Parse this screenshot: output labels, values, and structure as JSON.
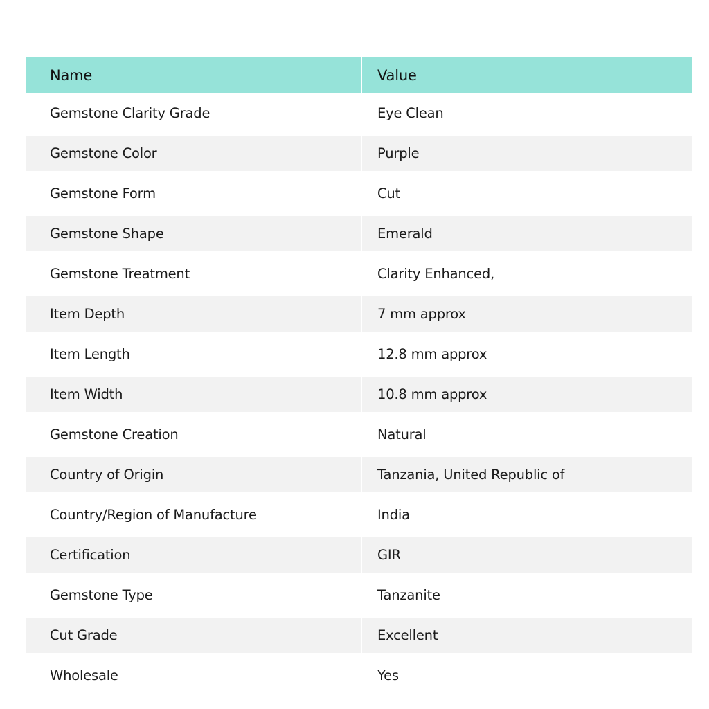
{
  "header": {
    "name": "Name",
    "value": "Value"
  },
  "colors": {
    "header_bg": "#96e3d9",
    "stripe_bg": "#f2f2f2"
  },
  "rows": [
    {
      "name": "Gemstone Clarity Grade",
      "value": "Eye Clean"
    },
    {
      "name": "Gemstone Color",
      "value": "Purple"
    },
    {
      "name": "Gemstone Form",
      "value": "Cut"
    },
    {
      "name": "Gemstone Shape",
      "value": "Emerald"
    },
    {
      "name": "Gemstone Treatment",
      "value": "Clarity Enhanced,"
    },
    {
      "name": "Item Depth",
      "value": "7 mm approx"
    },
    {
      "name": "Item Length",
      "value": "12.8 mm approx"
    },
    {
      "name": "Item Width",
      "value": "10.8 mm approx"
    },
    {
      "name": "Gemstone Creation",
      "value": "Natural"
    },
    {
      "name": "Country of Origin",
      "value": "Tanzania, United Republic of"
    },
    {
      "name": "Country/Region of Manufacture",
      "value": "India"
    },
    {
      "name": "Certification",
      "value": "GIR"
    },
    {
      "name": "Gemstone Type",
      "value": "Tanzanite"
    },
    {
      "name": "Cut Grade",
      "value": "Excellent"
    },
    {
      "name": "Wholesale",
      "value": "Yes"
    }
  ]
}
